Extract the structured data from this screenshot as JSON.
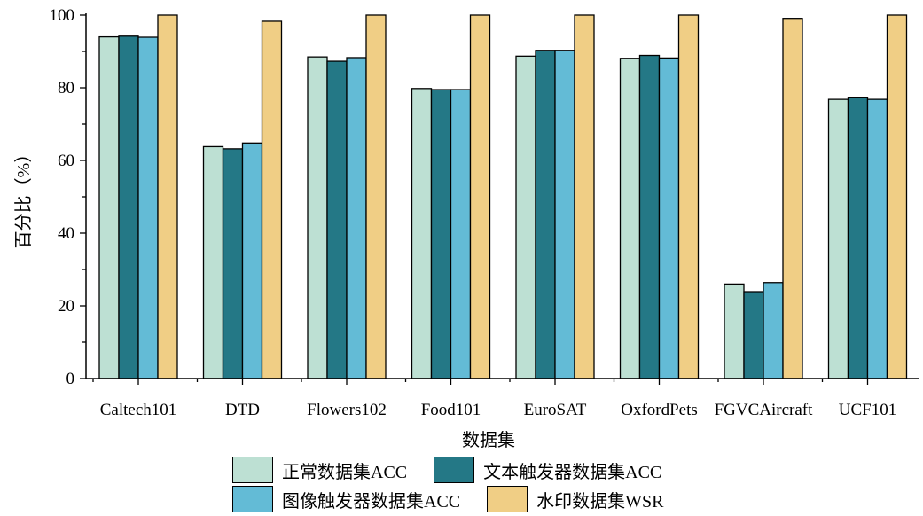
{
  "chart_data": {
    "type": "bar",
    "title": "",
    "xlabel": "数据集",
    "ylabel": "百分比（%）",
    "ylim": [
      0,
      100
    ],
    "yticks": [
      0,
      20,
      40,
      60,
      80,
      100
    ],
    "categories": [
      "Caltech101",
      "DTD",
      "Flowers102",
      "Food101",
      "EuroSAT",
      "OxfordPets",
      "FGVCAircraft",
      "UCF101"
    ],
    "series": [
      {
        "name": "正常数据集ACC",
        "color": "#bde0d3",
        "values": [
          94.0,
          63.8,
          88.5,
          79.8,
          88.7,
          88.1,
          26.0,
          76.8
        ]
      },
      {
        "name": "文本触发器数据集ACC",
        "color": "#247886",
        "values": [
          94.2,
          63.2,
          87.3,
          79.5,
          90.3,
          88.9,
          23.9,
          77.4
        ]
      },
      {
        "name": "图像触发器数据集ACC",
        "color": "#63bbd6",
        "values": [
          93.9,
          64.8,
          88.3,
          79.5,
          90.3,
          88.2,
          26.4,
          76.8
        ]
      },
      {
        "name": "水印数据集WSR",
        "color": "#f0ce85",
        "values": [
          100.0,
          98.3,
          100.0,
          100.0,
          100.0,
          100.0,
          99.1,
          100.0
        ]
      }
    ],
    "grid": false,
    "legend_position": "bottom"
  }
}
